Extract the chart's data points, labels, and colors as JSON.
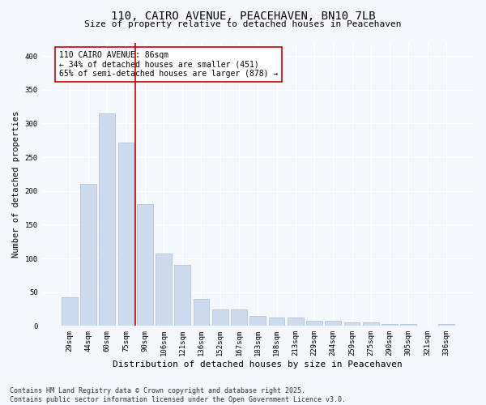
{
  "title_line1": "110, CAIRO AVENUE, PEACEHAVEN, BN10 7LB",
  "title_line2": "Size of property relative to detached houses in Peacehaven",
  "xlabel": "Distribution of detached houses by size in Peacehaven",
  "ylabel": "Number of detached properties",
  "bar_color": "#ccdcee",
  "bar_edge_color": "#aabcce",
  "categories": [
    "29sqm",
    "44sqm",
    "60sqm",
    "75sqm",
    "90sqm",
    "106sqm",
    "121sqm",
    "136sqm",
    "152sqm",
    "167sqm",
    "183sqm",
    "198sqm",
    "213sqm",
    "229sqm",
    "244sqm",
    "259sqm",
    "275sqm",
    "290sqm",
    "305sqm",
    "321sqm",
    "336sqm"
  ],
  "values": [
    42,
    210,
    315,
    272,
    180,
    107,
    90,
    40,
    25,
    25,
    15,
    12,
    12,
    8,
    8,
    5,
    5,
    3,
    3,
    1,
    3
  ],
  "ylim": [
    0,
    420
  ],
  "yticks": [
    0,
    50,
    100,
    150,
    200,
    250,
    300,
    350,
    400
  ],
  "vline_x_index": 3.5,
  "vline_color": "#cc0000",
  "annotation_text": "110 CAIRO AVENUE: 86sqm\n← 34% of detached houses are smaller (451)\n65% of semi-detached houses are larger (878) →",
  "annotation_fontsize": 7,
  "footer_line1": "Contains HM Land Registry data © Crown copyright and database right 2025.",
  "footer_line2": "Contains public sector information licensed under the Open Government Licence v3.0.",
  "footer_fontsize": 6,
  "background_color": "#f4f7fb",
  "plot_bg_color": "#f4f7fb",
  "grid_color": "#ffffff",
  "title_fontsize": 10,
  "subtitle_fontsize": 8,
  "xlabel_fontsize": 8,
  "ylabel_fontsize": 7.5,
  "tick_fontsize": 6.5
}
